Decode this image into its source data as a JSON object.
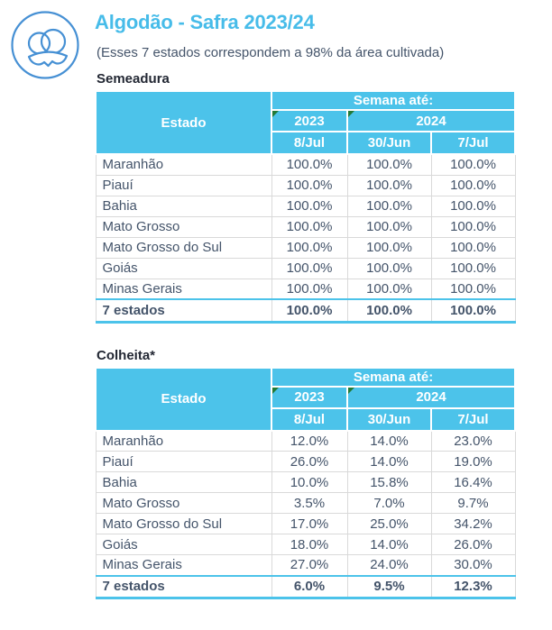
{
  "page": {
    "title": "Algodão - Safra 2023/24",
    "subtitle": "(Esses 7 estados correspondem a 98% da área cultivada)"
  },
  "icon": {
    "name": "cotton-boll-icon"
  },
  "table_header": {
    "estado": "Estado",
    "semana": "Semana até:",
    "year_2023": "2023",
    "year_2024": "2024",
    "dates": [
      "8/Jul",
      "30/Jun",
      "7/Jul"
    ]
  },
  "tables": [
    {
      "section_title": "Semeadura",
      "rows": [
        {
          "state": "Maranhão",
          "values": [
            "100.0%",
            "100.0%",
            "100.0%"
          ]
        },
        {
          "state": "Piauí",
          "values": [
            "100.0%",
            "100.0%",
            "100.0%"
          ]
        },
        {
          "state": "Bahia",
          "values": [
            "100.0%",
            "100.0%",
            "100.0%"
          ]
        },
        {
          "state": "Mato Grosso",
          "values": [
            "100.0%",
            "100.0%",
            "100.0%"
          ]
        },
        {
          "state": "Mato Grosso do Sul",
          "values": [
            "100.0%",
            "100.0%",
            "100.0%"
          ]
        },
        {
          "state": "Goiás",
          "values": [
            "100.0%",
            "100.0%",
            "100.0%"
          ]
        },
        {
          "state": "Minas Gerais",
          "values": [
            "100.0%",
            "100.0%",
            "100.0%"
          ]
        }
      ],
      "total": {
        "state": "7 estados",
        "values": [
          "100.0%",
          "100.0%",
          "100.0%"
        ]
      }
    },
    {
      "section_title": "Colheita*",
      "rows": [
        {
          "state": "Maranhão",
          "values": [
            "12.0%",
            "14.0%",
            "23.0%"
          ]
        },
        {
          "state": "Piauí",
          "values": [
            "26.0%",
            "14.0%",
            "19.0%"
          ]
        },
        {
          "state": "Bahia",
          "values": [
            "10.0%",
            "15.8%",
            "16.4%"
          ]
        },
        {
          "state": "Mato Grosso",
          "values": [
            "3.5%",
            "7.0%",
            "9.7%"
          ]
        },
        {
          "state": "Mato Grosso do Sul",
          "values": [
            "17.0%",
            "25.0%",
            "34.2%"
          ]
        },
        {
          "state": "Goiás",
          "values": [
            "18.0%",
            "14.0%",
            "26.0%"
          ]
        },
        {
          "state": "Minas Gerais",
          "values": [
            "27.0%",
            "24.0%",
            "30.0%"
          ]
        }
      ],
      "total": {
        "state": "7 estados",
        "values": [
          "6.0%",
          "9.5%",
          "12.3%"
        ]
      }
    }
  ],
  "colors": {
    "header_fill": "#4CC3EA",
    "title_text": "#47BCE9",
    "body_text": "#44546A",
    "section_text": "#222733",
    "row_border": "#D9D9D9",
    "total_border": "#4CC3EA",
    "note_marker_green": "#217A36",
    "icon_stroke": "#4690D4"
  }
}
